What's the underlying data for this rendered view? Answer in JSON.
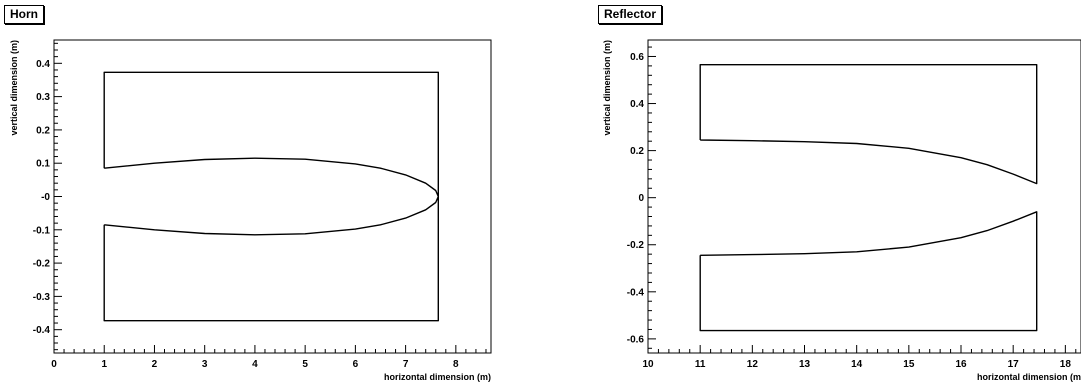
{
  "chart_data": [
    {
      "type": "line",
      "title": "Horn",
      "xlabel": "horizontal dimension (m)",
      "ylabel": "vertical dimension (m)",
      "xlim": [
        0,
        8.7
      ],
      "ylim": [
        -0.47,
        0.47
      ],
      "x_ticks": [
        0,
        1,
        2,
        3,
        4,
        5,
        6,
        7,
        8
      ],
      "x_tick_labels": [
        "0",
        "1",
        "2",
        "3",
        "4",
        "5",
        "6",
        "7",
        "8"
      ],
      "y_ticks": [
        -0.4,
        -0.3,
        -0.2,
        -0.1,
        0,
        0.1,
        0.2,
        0.3,
        0.4
      ],
      "y_tick_labels": [
        "-0.4",
        "-0.3",
        "-0.2",
        "-0.1",
        "-0",
        "0.1",
        "0.2",
        "0.3",
        "0.4"
      ],
      "series": [
        {
          "points": [
            [
              1.0,
              0.085
            ],
            [
              1.0,
              0.373
            ],
            [
              7.65,
              0.373
            ],
            [
              7.65,
              0.0
            ],
            [
              7.6,
              0.018
            ],
            [
              7.4,
              0.04
            ],
            [
              7.0,
              0.065
            ],
            [
              6.5,
              0.085
            ],
            [
              6.0,
              0.098
            ],
            [
              5.0,
              0.112
            ],
            [
              4.0,
              0.115
            ],
            [
              3.0,
              0.111
            ],
            [
              2.0,
              0.1
            ],
            [
              1.0,
              0.085
            ]
          ]
        },
        {
          "points": [
            [
              1.0,
              -0.085
            ],
            [
              1.0,
              -0.373
            ],
            [
              7.65,
              -0.373
            ],
            [
              7.65,
              0.0
            ],
            [
              7.6,
              -0.018
            ],
            [
              7.4,
              -0.04
            ],
            [
              7.0,
              -0.065
            ],
            [
              6.5,
              -0.085
            ],
            [
              6.0,
              -0.098
            ],
            [
              5.0,
              -0.112
            ],
            [
              4.0,
              -0.115
            ],
            [
              3.0,
              -0.111
            ],
            [
              2.0,
              -0.1
            ],
            [
              1.0,
              -0.085
            ]
          ]
        }
      ]
    },
    {
      "type": "line",
      "title": "Reflector",
      "xlabel": "horizontal dimension (m",
      "ylabel": "vertical dimension (m)",
      "xlim": [
        10,
        18.3
      ],
      "ylim": [
        -0.66,
        0.67
      ],
      "x_ticks": [
        10,
        11,
        12,
        13,
        14,
        15,
        16,
        17,
        18
      ],
      "x_tick_labels": [
        "10",
        "11",
        "12",
        "13",
        "14",
        "15",
        "16",
        "17",
        "18"
      ],
      "y_ticks": [
        -0.6,
        -0.4,
        -0.2,
        0,
        0.2,
        0.4,
        0.6
      ],
      "y_tick_labels": [
        "-0.6",
        "-0.4",
        "-0.2",
        "0",
        "0.2",
        "0.4",
        "0.6"
      ],
      "series": [
        {
          "points": [
            [
              11.0,
              0.245
            ],
            [
              11.0,
              0.565
            ],
            [
              17.45,
              0.565
            ],
            [
              17.45,
              0.06
            ],
            [
              17.0,
              0.1
            ],
            [
              16.5,
              0.14
            ],
            [
              16.0,
              0.17
            ],
            [
              15.0,
              0.21
            ],
            [
              14.0,
              0.23
            ],
            [
              13.0,
              0.238
            ],
            [
              12.0,
              0.242
            ],
            [
              11.0,
              0.245
            ]
          ]
        },
        {
          "points": [
            [
              11.0,
              -0.245
            ],
            [
              11.0,
              -0.565
            ],
            [
              17.45,
              -0.565
            ],
            [
              17.45,
              -0.06
            ],
            [
              17.0,
              -0.1
            ],
            [
              16.5,
              -0.14
            ],
            [
              16.0,
              -0.17
            ],
            [
              15.0,
              -0.21
            ],
            [
              14.0,
              -0.23
            ],
            [
              13.0,
              -0.238
            ],
            [
              12.0,
              -0.242
            ],
            [
              11.0,
              -0.245
            ]
          ]
        }
      ]
    }
  ]
}
